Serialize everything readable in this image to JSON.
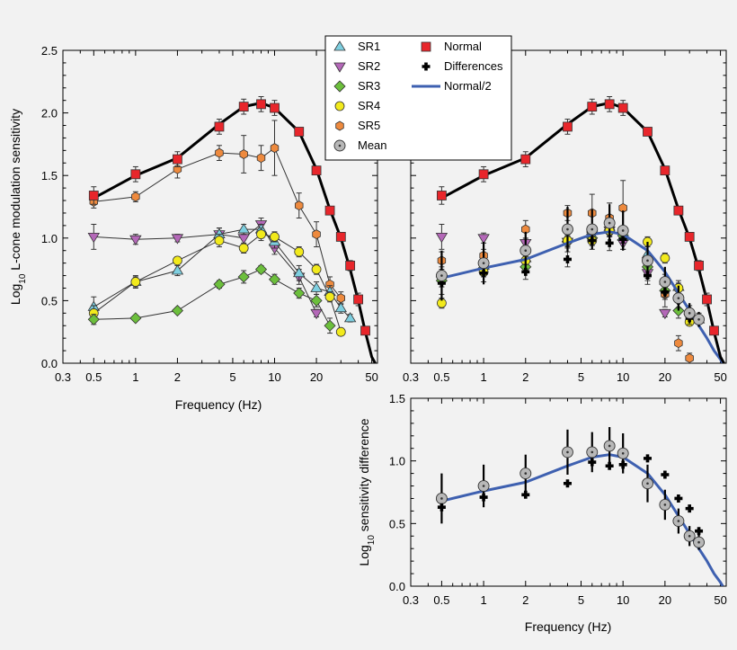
{
  "figure": {
    "legend": {
      "SR1": "SR1",
      "SR2": "SR2",
      "SR3": "SR3",
      "SR4": "SR4",
      "SR5": "SR5",
      "Mean": "Mean",
      "Normal": "Normal",
      "Differences": "Differences",
      "Normal2": "Normal/2"
    },
    "colors": {
      "SR1": "#7ecfe0",
      "SR2": "#b468b8",
      "SR3": "#6cbf3c",
      "SR4": "#f2ea1c",
      "SR5": "#ee8a3e",
      "Mean": "#b8b8b8",
      "Normal": "#e8262b",
      "Differences": "#000000",
      "Normal2": "#3e60b0"
    }
  },
  "chart_data": [
    {
      "type": "line",
      "panel": "left",
      "xlabel": "Frequency (Hz)",
      "ylabel_main": "Log",
      "ylabel_sub": "10",
      "ylabel_rest": " L-cone modulation sensitivity",
      "x_scale": "log",
      "xlim": [
        0.3,
        55
      ],
      "ylim": [
        0,
        2.5
      ],
      "x_ticks": [
        0.3,
        0.5,
        1,
        2,
        5,
        10,
        20,
        50
      ],
      "x_tick_labels": [
        "0.3",
        "0.5",
        "1",
        "2",
        "5",
        "10",
        "20",
        "50"
      ],
      "y_ticks": [
        0,
        0.5,
        1.0,
        1.5,
        2.0,
        2.5
      ],
      "y_tick_labels": [
        "0.0",
        "0.5",
        "1.0",
        "1.5",
        "2.0",
        "2.5"
      ],
      "series": [
        {
          "name": "SR5",
          "connected": true,
          "x": [
            0.5,
            1,
            2,
            4,
            6,
            8,
            10,
            15,
            20,
            25,
            30
          ],
          "y": [
            1.29,
            1.33,
            1.55,
            1.68,
            1.67,
            1.64,
            1.72,
            1.26,
            1.03,
            0.63,
            0.52
          ],
          "err": [
            0.05,
            0.04,
            0.07,
            0.06,
            0.15,
            0.1,
            0.22,
            0.1,
            0.1,
            0.06,
            0.05
          ]
        },
        {
          "name": "SR2",
          "connected": true,
          "x": [
            0.5,
            1,
            2,
            4,
            6,
            8,
            10,
            15,
            20
          ],
          "y": [
            1.01,
            0.99,
            1.0,
            1.03,
            1.0,
            1.11,
            0.92,
            0.69,
            0.4
          ],
          "err": [
            0.1,
            0.04,
            0.03,
            0.05,
            0.06,
            0.05,
            0.05,
            0.06,
            0.03
          ]
        },
        {
          "name": "SR1",
          "connected": true,
          "x": [
            0.5,
            1,
            2,
            4,
            6,
            8,
            10,
            15,
            20,
            25,
            30,
            35
          ],
          "y": [
            0.45,
            0.65,
            0.74,
            1.03,
            1.07,
            1.07,
            0.97,
            0.72,
            0.6,
            0.57,
            0.44,
            0.36
          ],
          "err": [
            0.08,
            0.05,
            0.04,
            0.05,
            0.04,
            0.04,
            0.05,
            0.06,
            0.05,
            0.05,
            0.04,
            0.03
          ]
        },
        {
          "name": "SR4",
          "connected": true,
          "x": [
            0.5,
            1,
            2,
            4,
            6,
            8,
            10,
            15,
            20,
            25,
            30
          ],
          "y": [
            0.4,
            0.65,
            0.82,
            0.98,
            0.92,
            1.03,
            1.01,
            0.89,
            0.75,
            0.53,
            0.25
          ],
          "err": [
            0.06,
            0.04,
            0.03,
            0.05,
            0.04,
            0.05,
            0.04,
            0.04,
            0.04,
            0.04,
            0.03
          ]
        },
        {
          "name": "SR3",
          "connected": true,
          "x": [
            0.5,
            1,
            2,
            4,
            6,
            8,
            10,
            15,
            20,
            25
          ],
          "y": [
            0.35,
            0.36,
            0.42,
            0.63,
            0.69,
            0.75,
            0.67,
            0.56,
            0.5,
            0.3
          ],
          "err": [
            0.04,
            0.02,
            0.02,
            0.03,
            0.05,
            0.03,
            0.04,
            0.04,
            0.05,
            0.06
          ]
        },
        {
          "name": "Normal",
          "connected": false,
          "x": [
            0.5,
            1,
            2,
            4,
            6,
            8,
            10,
            15,
            20,
            25,
            30,
            35,
            40,
            45
          ],
          "y": [
            1.34,
            1.51,
            1.63,
            1.89,
            2.05,
            2.07,
            2.04,
            1.85,
            1.54,
            1.22,
            1.01,
            0.78,
            0.51,
            0.26
          ],
          "err": [
            0.07,
            0.06,
            0.06,
            0.06,
            0.06,
            0.06,
            0.06,
            0.03,
            0.03,
            0.03,
            0.03,
            0.04,
            0.05,
            0.03
          ]
        },
        {
          "name": "Normal fit",
          "x": [
            0.5,
            1,
            2,
            4,
            6,
            8,
            10,
            15,
            20,
            25,
            30,
            35,
            40,
            45,
            50,
            53
          ],
          "y": [
            1.32,
            1.5,
            1.64,
            1.91,
            2.05,
            2.08,
            2.04,
            1.85,
            1.55,
            1.23,
            1.0,
            0.75,
            0.5,
            0.25,
            0.05,
            0.0
          ]
        }
      ]
    },
    {
      "type": "scatter",
      "panel": "right",
      "x_scale": "log",
      "xlim": [
        0.3,
        55
      ],
      "ylim": [
        0,
        2.5
      ],
      "series": [
        {
          "name": "SR2",
          "x": [
            0.5,
            1,
            2,
            4,
            6,
            8,
            10,
            15,
            20
          ],
          "y": [
            1.01,
            1.0,
            0.96,
            0.97,
            1.02,
            1.06,
            0.96,
            0.72,
            0.4
          ],
          "err": [
            0.1,
            0.04,
            0.03,
            0.05,
            0.06,
            0.05,
            0.05,
            0.06,
            0.03
          ]
        },
        {
          "name": "SR5",
          "x": [
            0.5,
            1,
            2,
            4,
            6,
            8,
            10,
            15,
            20,
            25,
            30
          ],
          "y": [
            0.82,
            0.86,
            1.07,
            1.2,
            1.2,
            1.16,
            1.24,
            0.78,
            0.55,
            0.16,
            0.04
          ],
          "err": [
            0.07,
            0.05,
            0.07,
            0.06,
            0.15,
            0.12,
            0.22,
            0.1,
            0.1,
            0.06,
            0.04
          ]
        },
        {
          "name": "SR1",
          "x": [
            0.5,
            1,
            2,
            4,
            6,
            8,
            10,
            15,
            20,
            25,
            30,
            35
          ],
          "y": [
            0.72,
            0.78,
            0.84,
            1.0,
            1.06,
            1.09,
            1.01,
            0.87,
            0.66,
            0.61,
            0.42,
            0.35
          ],
          "err": [
            0.05,
            0.04,
            0.04,
            0.05,
            0.04,
            0.04,
            0.05,
            0.06,
            0.05,
            0.05,
            0.04,
            0.03
          ]
        },
        {
          "name": "SR3",
          "x": [
            0.5,
            1,
            2,
            4,
            6,
            8,
            10,
            15,
            20,
            25
          ],
          "y": [
            0.66,
            0.76,
            0.77,
            0.97,
            1.0,
            1.05,
            1.02,
            0.77,
            0.58,
            0.42
          ],
          "err": [
            0.05,
            0.03,
            0.02,
            0.03,
            0.05,
            0.03,
            0.04,
            0.04,
            0.05,
            0.06
          ]
        },
        {
          "name": "SR4",
          "x": [
            0.5,
            1,
            2,
            4,
            6,
            8,
            10,
            15,
            20,
            25,
            30
          ],
          "y": [
            0.48,
            0.73,
            0.82,
            0.98,
            0.98,
            1.06,
            1.05,
            0.97,
            0.84,
            0.6,
            0.33
          ],
          "err": [
            0.04,
            0.04,
            0.03,
            0.05,
            0.04,
            0.05,
            0.04,
            0.04,
            0.04,
            0.04,
            0.03
          ]
        },
        {
          "name": "Differences",
          "x": [
            0.5,
            1,
            2,
            4,
            6,
            8,
            10,
            15,
            20,
            25,
            30,
            35
          ],
          "y": [
            0.64,
            0.72,
            0.73,
            0.83,
            0.98,
            0.96,
            0.99,
            0.7,
            0.57,
            0.5,
            0.36,
            0.36
          ],
          "err": [
            0.09,
            0.07,
            0.06,
            0.06,
            0.07,
            0.06,
            0.08,
            0.07,
            0.06,
            0.06,
            0.05,
            0.04
          ]
        },
        {
          "name": "Mean",
          "x": [
            0.5,
            1,
            2,
            4,
            6,
            8,
            10,
            15,
            20,
            25,
            30,
            35
          ],
          "y": [
            0.7,
            0.8,
            0.9,
            1.07,
            1.07,
            1.12,
            1.06,
            0.82,
            0.65,
            0.52,
            0.4,
            0.35
          ],
          "err": [
            0.2,
            0.17,
            0.15,
            0.18,
            0.16,
            0.15,
            0.16,
            0.15,
            0.12,
            0.1,
            0.08,
            0.06
          ]
        },
        {
          "name": "Normal",
          "x": [
            0.5,
            1,
            2,
            4,
            6,
            8,
            10,
            15,
            20,
            25,
            30,
            35,
            40,
            45
          ],
          "y": [
            1.34,
            1.51,
            1.63,
            1.89,
            2.05,
            2.07,
            2.04,
            1.85,
            1.54,
            1.22,
            1.01,
            0.78,
            0.51,
            0.26
          ],
          "err": [
            0.07,
            0.06,
            0.06,
            0.06,
            0.06,
            0.06,
            0.06,
            0.03,
            0.03,
            0.03,
            0.03,
            0.04,
            0.05,
            0.03
          ]
        },
        {
          "name": "Normal fit",
          "x": [
            0.5,
            1,
            2,
            4,
            6,
            8,
            10,
            15,
            20,
            25,
            30,
            35,
            40,
            45,
            50,
            53
          ],
          "y": [
            1.32,
            1.5,
            1.64,
            1.91,
            2.05,
            2.08,
            2.04,
            1.85,
            1.55,
            1.23,
            1.0,
            0.75,
            0.5,
            0.25,
            0.05,
            0.0
          ]
        },
        {
          "name": "Normal/2 fit",
          "x": [
            0.5,
            1,
            2,
            4,
            6,
            8,
            10,
            15,
            20,
            25,
            30,
            35,
            40,
            45,
            50,
            52
          ],
          "y": [
            0.68,
            0.76,
            0.83,
            0.96,
            1.03,
            1.05,
            1.03,
            0.9,
            0.73,
            0.56,
            0.42,
            0.3,
            0.2,
            0.1,
            0.03,
            0.0
          ]
        }
      ]
    },
    {
      "type": "scatter",
      "panel": "bottom",
      "xlabel": "Frequency (Hz)",
      "ylabel_main": "Log",
      "ylabel_sub": "10",
      "ylabel_rest": " sensitivity difference",
      "x_scale": "log",
      "xlim": [
        0.3,
        55
      ],
      "ylim": [
        0,
        1.5
      ],
      "x_ticks": [
        0.3,
        0.5,
        1,
        2,
        5,
        10,
        20,
        50
      ],
      "x_tick_labels": [
        "0.3",
        "0.5",
        "1",
        "2",
        "5",
        "10",
        "20",
        "50"
      ],
      "y_ticks": [
        0,
        0.5,
        1.0,
        1.5
      ],
      "y_tick_labels": [
        "0.0",
        "0.5",
        "1.0",
        "1.5"
      ],
      "series": [
        {
          "name": "Mean",
          "x": [
            0.5,
            1,
            2,
            4,
            6,
            8,
            10,
            15,
            20,
            25,
            30,
            35
          ],
          "y": [
            0.7,
            0.8,
            0.9,
            1.07,
            1.07,
            1.12,
            1.06,
            0.82,
            0.65,
            0.52,
            0.4,
            0.35
          ],
          "err": [
            0.2,
            0.17,
            0.15,
            0.18,
            0.16,
            0.15,
            0.16,
            0.15,
            0.12,
            0.1,
            0.08,
            0.06
          ]
        },
        {
          "name": "Differences",
          "x": [
            0.5,
            1,
            2,
            4,
            6,
            8,
            10,
            15,
            20,
            25,
            30,
            35
          ],
          "y": [
            0.63,
            0.71,
            0.73,
            0.82,
            0.99,
            0.96,
            0.97,
            1.02,
            0.89,
            0.7,
            0.62,
            0.44
          ]
        },
        {
          "name": "Normal/2 fit",
          "x": [
            0.5,
            1,
            2,
            4,
            6,
            8,
            10,
            15,
            20,
            25,
            30,
            35,
            40,
            45,
            50,
            52
          ],
          "y": [
            0.68,
            0.76,
            0.83,
            0.96,
            1.03,
            1.05,
            1.03,
            0.9,
            0.73,
            0.56,
            0.42,
            0.3,
            0.2,
            0.1,
            0.03,
            0.0
          ]
        }
      ]
    }
  ]
}
